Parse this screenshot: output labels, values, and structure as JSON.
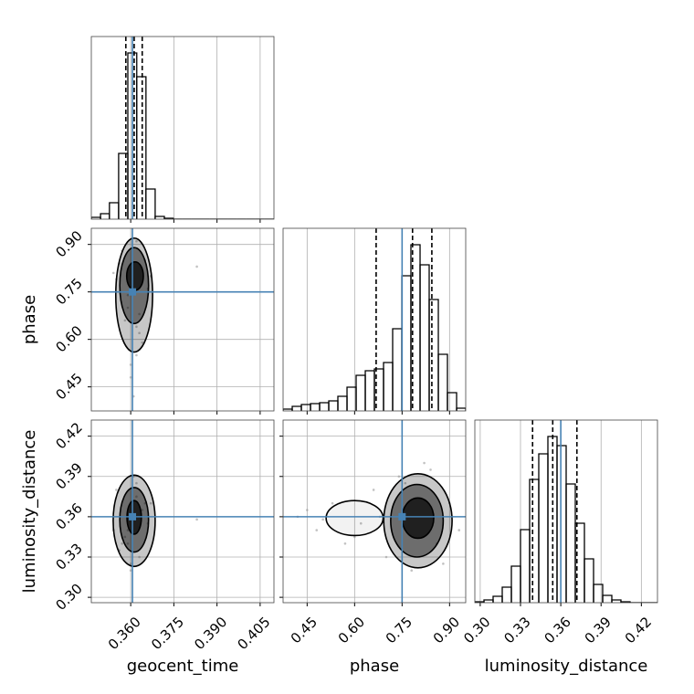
{
  "chart_data": {
    "type": "corner",
    "grid": true,
    "truth_color": "#4682b4",
    "parameters": [
      {
        "name": "geocent_time",
        "lim": [
          0.3463,
          0.4098
        ],
        "ticks": [
          {
            "value": 0.36,
            "label": "0.360"
          },
          0.375,
          {
            "value": 0.39,
            "label": "0.390"
          },
          0.405
        ],
        "truth": 0.3606,
        "quantiles": [
          0.3583,
          0.3612,
          0.364
        ],
        "bins": [
          0.3463,
          0.3495,
          0.3526,
          0.3558,
          0.359,
          0.3621,
          0.3653,
          0.3685,
          0.3717,
          0.3748,
          0.378,
          0.3812,
          0.3844,
          0.3875,
          0.3907,
          0.3939,
          0.397,
          0.4002,
          0.4034,
          0.4066,
          0.4098
        ],
        "counts": [
          2,
          6,
          18,
          72,
          182,
          156,
          33,
          3,
          1,
          0,
          0,
          0,
          0,
          0,
          0,
          0,
          0,
          0,
          0,
          0
        ],
        "hist_ylim": [
          0,
          200
        ]
      },
      {
        "name": "phase",
        "lim": [
          0.374,
          0.951
        ],
        "ticks": [
          0.45,
          {
            "value": 0.6,
            "label": "0.60"
          },
          0.75,
          {
            "value": 0.9,
            "label": "0.90"
          }
        ],
        "truth": 0.75,
        "quantiles": [
          0.668,
          0.783,
          0.844
        ],
        "bins": [
          0.374,
          0.4029,
          0.4317,
          0.4606,
          0.4894,
          0.5183,
          0.5471,
          0.576,
          0.6048,
          0.6337,
          0.6625,
          0.6914,
          0.7202,
          0.7491,
          0.7779,
          0.8068,
          0.8356,
          0.8645,
          0.8933,
          0.9222,
          0.951
        ],
        "counts": [
          2,
          5,
          7,
          8,
          9,
          11,
          16,
          26,
          39,
          44,
          46,
          53,
          90,
          148,
          182,
          160,
          122,
          62,
          20,
          3
        ],
        "hist_ylim": [
          0,
          200
        ]
      },
      {
        "name": "luminosity_distance",
        "lim": [
          0.296,
          0.432
        ],
        "ticks": [
          {
            "value": 0.3,
            "label": "0.30"
          },
          0.33,
          0.36,
          0.39,
          0.42
        ],
        "truth": 0.36,
        "quantiles": [
          0.339,
          0.354,
          0.372
        ],
        "bins": [
          0.296,
          0.3028,
          0.3096,
          0.3164,
          0.3232,
          0.33,
          0.3368,
          0.3436,
          0.3504,
          0.3572,
          0.364,
          0.3708,
          0.3776,
          0.3844,
          0.3912,
          0.398,
          0.4048,
          0.4116,
          0.4184,
          0.4252,
          0.432
        ],
        "counts": [
          1,
          3,
          7,
          17,
          40,
          80,
          135,
          163,
          182,
          172,
          130,
          87,
          48,
          20,
          8,
          3,
          1,
          0,
          0,
          0
        ],
        "hist_ylim": [
          0,
          200
        ]
      }
    ],
    "pairs": [
      {
        "x": 0,
        "y": 1,
        "points": {
          "x": [
            0.357,
            0.365,
            0.359,
            0.363,
            0.355,
            0.362,
            0.36,
            0.366,
            0.358,
            0.361,
            0.364,
            0.356,
            0.362,
            0.359,
            0.363,
            0.36,
            0.354,
            0.367,
            0.383,
            0.362
          ],
          "y": [
            0.88,
            0.85,
            0.7,
            0.62,
            0.79,
            0.55,
            0.48,
            0.76,
            0.66,
            0.42,
            0.59,
            0.84,
            0.91,
            0.74,
            0.68,
            0.52,
            0.81,
            0.8,
            0.83,
            0.64
          ]
        },
        "contours": [
          {
            "cx": 0.3612,
            "cy": 0.74,
            "rx": 0.0064,
            "ry": 0.18
          },
          {
            "cx": 0.3612,
            "cy": 0.77,
            "rx": 0.005,
            "ry": 0.12
          },
          {
            "cx": 0.3615,
            "cy": 0.8,
            "rx": 0.0029,
            "ry": 0.045
          }
        ]
      },
      {
        "x": 0,
        "y": 2,
        "points": {
          "x": [
            0.357,
            0.365,
            0.359,
            0.363,
            0.355,
            0.362,
            0.36,
            0.366,
            0.358,
            0.361,
            0.364,
            0.356,
            0.362,
            0.359,
            0.363,
            0.36,
            0.354,
            0.367,
            0.383,
            0.362
          ],
          "y": [
            0.34,
            0.37,
            0.35,
            0.33,
            0.38,
            0.36,
            0.32,
            0.355,
            0.345,
            0.39,
            0.365,
            0.335,
            0.375,
            0.34,
            0.36,
            0.325,
            0.35,
            0.37,
            0.358,
            0.385
          ]
        },
        "contours": [
          {
            "cx": 0.3612,
            "cy": 0.357,
            "rx": 0.0073,
            "ry": 0.034
          },
          {
            "cx": 0.3612,
            "cy": 0.3577,
            "rx": 0.005,
            "ry": 0.024
          },
          {
            "cx": 0.3612,
            "cy": 0.3595,
            "rx": 0.0025,
            "ry": 0.0125
          }
        ]
      },
      {
        "x": 1,
        "y": 2,
        "points": {
          "x": [
            0.42,
            0.48,
            0.53,
            0.57,
            0.62,
            0.66,
            0.7,
            0.74,
            0.78,
            0.82,
            0.86,
            0.9,
            0.93,
            0.45,
            0.6,
            0.88,
            0.76,
            0.68,
            0.84,
            0.5
          ],
          "y": [
            0.36,
            0.35,
            0.37,
            0.34,
            0.355,
            0.38,
            0.33,
            0.39,
            0.32,
            0.4,
            0.34,
            0.37,
            0.35,
            0.365,
            0.345,
            0.325,
            0.385,
            0.36,
            0.395,
            0.358
          ]
        },
        "contours": [
          {
            "cx": 0.6,
            "cy": 0.359,
            "rx": 0.09,
            "ry": 0.013
          },
          {
            "cx": 0.8,
            "cy": 0.357,
            "rx": 0.108,
            "ry": 0.035
          },
          {
            "cx": 0.797,
            "cy": 0.357,
            "rx": 0.083,
            "ry": 0.027
          },
          {
            "cx": 0.8,
            "cy": 0.359,
            "rx": 0.05,
            "ry": 0.015
          }
        ]
      }
    ]
  }
}
